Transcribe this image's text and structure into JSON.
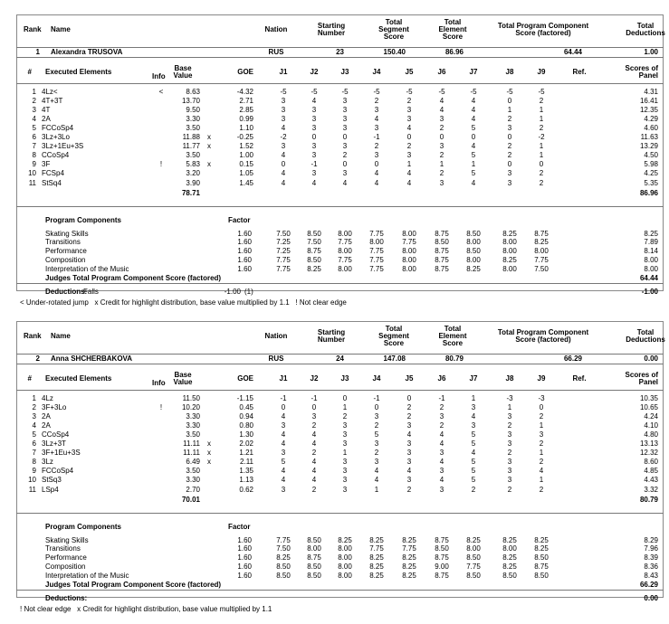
{
  "labels": {
    "rank": "Rank",
    "name": "Name",
    "nation": "Nation",
    "starting_number": [
      "Starting",
      "Number"
    ],
    "segment_score": [
      "Total",
      "Segment",
      "Score"
    ],
    "element_score": [
      "Total",
      "Element",
      "Score"
    ],
    "pcs_score": [
      "Total Program Component",
      "Score (factored)"
    ],
    "deductions": [
      "Total",
      "Deductions"
    ],
    "num": "#",
    "executed": "Executed Elements",
    "info": "Info",
    "base": [
      "Base",
      "Value"
    ],
    "goe": "GOE",
    "judges": [
      "J1",
      "J2",
      "J3",
      "J4",
      "J5",
      "J6",
      "J7",
      "J8",
      "J9"
    ],
    "ref": "Ref.",
    "panel": [
      "Scores of",
      "Panel"
    ],
    "program_components": "Program Components",
    "factor": "Factor",
    "judges_total": "Judges Total Program Component Score (factored)",
    "deductions_row": "Deductions:"
  },
  "skaters": [
    {
      "rank": "1",
      "name": "Alexandra TRUSOVA",
      "nation": "RUS",
      "starting_number": "23",
      "segment_score": "150.40",
      "element_score": "86.96",
      "pcs_score": "64.44",
      "deductions": "1.00",
      "elements": [
        {
          "num": "1",
          "name": "4Lz<",
          "info": "<",
          "base": "8.63",
          "x": "",
          "goe": "-4.32",
          "judges": [
            "-5",
            "-5",
            "-5",
            "-5",
            "-5",
            "-5",
            "-5",
            "-5",
            "-5"
          ],
          "score": "4.31"
        },
        {
          "num": "2",
          "name": "4T+3T",
          "info": "",
          "base": "13.70",
          "x": "",
          "goe": "2.71",
          "judges": [
            "3",
            "4",
            "3",
            "2",
            "2",
            "4",
            "4",
            "0",
            "2"
          ],
          "score": "16.41"
        },
        {
          "num": "3",
          "name": "4T",
          "info": "",
          "base": "9.50",
          "x": "",
          "goe": "2.85",
          "judges": [
            "3",
            "3",
            "3",
            "3",
            "3",
            "4",
            "4",
            "1",
            "1"
          ],
          "score": "12.35"
        },
        {
          "num": "4",
          "name": "2A",
          "info": "",
          "base": "3.30",
          "x": "",
          "goe": "0.99",
          "judges": [
            "3",
            "3",
            "3",
            "4",
            "3",
            "3",
            "4",
            "2",
            "1"
          ],
          "score": "4.29"
        },
        {
          "num": "5",
          "name": "FCCoSp4",
          "info": "",
          "base": "3.50",
          "x": "",
          "goe": "1.10",
          "judges": [
            "4",
            "3",
            "3",
            "3",
            "4",
            "2",
            "5",
            "3",
            "2"
          ],
          "score": "4.60"
        },
        {
          "num": "6",
          "name": "3Lz+3Lo",
          "info": "",
          "base": "11.88",
          "x": "x",
          "goe": "-0.25",
          "judges": [
            "-2",
            "0",
            "0",
            "-1",
            "0",
            "0",
            "0",
            "0",
            "-2"
          ],
          "score": "11.63"
        },
        {
          "num": "7",
          "name": "3Lz+1Eu+3S",
          "info": "",
          "base": "11.77",
          "x": "x",
          "goe": "1.52",
          "judges": [
            "3",
            "3",
            "3",
            "2",
            "2",
            "3",
            "4",
            "2",
            "1"
          ],
          "score": "13.29"
        },
        {
          "num": "8",
          "name": "CCoSp4",
          "info": "",
          "base": "3.50",
          "x": "",
          "goe": "1.00",
          "judges": [
            "4",
            "3",
            "2",
            "3",
            "3",
            "2",
            "5",
            "2",
            "1"
          ],
          "score": "4.50"
        },
        {
          "num": "9",
          "name": "3F",
          "info": "!",
          "base": "5.83",
          "x": "x",
          "goe": "0.15",
          "judges": [
            "0",
            "-1",
            "0",
            "0",
            "1",
            "1",
            "1",
            "0",
            "0"
          ],
          "score": "5.98"
        },
        {
          "num": "10",
          "name": "FCSp4",
          "info": "",
          "base": "3.20",
          "x": "",
          "goe": "1.05",
          "judges": [
            "4",
            "3",
            "3",
            "4",
            "4",
            "2",
            "5",
            "3",
            "2"
          ],
          "score": "4.25"
        },
        {
          "num": "11",
          "name": "StSq4",
          "info": "",
          "base": "3.90",
          "x": "",
          "goe": "1.45",
          "judges": [
            "4",
            "4",
            "4",
            "4",
            "4",
            "3",
            "4",
            "3",
            "2"
          ],
          "score": "5.35"
        }
      ],
      "base_total": "78.71",
      "elements_total": "86.96",
      "components": [
        {
          "name": "Skating Skills",
          "factor": "1.60",
          "judges": [
            "7.50",
            "8.50",
            "8.00",
            "7.75",
            "8.00",
            "8.75",
            "8.50",
            "8.25",
            "8.75"
          ],
          "score": "8.25"
        },
        {
          "name": "Transitions",
          "factor": "1.60",
          "judges": [
            "7.25",
            "7.50",
            "7.75",
            "8.00",
            "7.75",
            "8.50",
            "8.00",
            "8.00",
            "8.25"
          ],
          "score": "7.89"
        },
        {
          "name": "Performance",
          "factor": "1.60",
          "judges": [
            "7.25",
            "8.75",
            "8.00",
            "7.75",
            "8.00",
            "8.75",
            "8.50",
            "8.00",
            "8.00"
          ],
          "score": "8.14"
        },
        {
          "name": "Composition",
          "factor": "1.60",
          "judges": [
            "7.75",
            "8.50",
            "7.75",
            "7.75",
            "8.00",
            "8.75",
            "8.00",
            "8.25",
            "7.75"
          ],
          "score": "8.00"
        },
        {
          "name": "Interpretation of the Music",
          "factor": "1.60",
          "judges": [
            "7.75",
            "8.25",
            "8.00",
            "7.75",
            "8.00",
            "8.75",
            "8.25",
            "8.00",
            "7.50"
          ],
          "score": "8.00"
        }
      ],
      "pcs_total": "64.44",
      "deduction_items": [
        {
          "label": "Falls",
          "value": "-1.00",
          "count": "(1)"
        }
      ],
      "deduction_total": "-1.00",
      "footnote": "< Under-rotated jump   x Credit for highlight distribution, base value multiplied by 1.1   ! Not clear edge"
    },
    {
      "rank": "2",
      "name": "Anna SHCHERBAKOVA",
      "nation": "RUS",
      "starting_number": "24",
      "segment_score": "147.08",
      "element_score": "80.79",
      "pcs_score": "66.29",
      "deductions": "0.00",
      "elements": [
        {
          "num": "1",
          "name": "4Lz",
          "info": "",
          "base": "11.50",
          "x": "",
          "goe": "-1.15",
          "judges": [
            "-1",
            "-1",
            "0",
            "-1",
            "0",
            "-1",
            "1",
            "-3",
            "-3"
          ],
          "score": "10.35"
        },
        {
          "num": "2",
          "name": "3F+3Lo",
          "info": "!",
          "base": "10.20",
          "x": "",
          "goe": "0.45",
          "judges": [
            "0",
            "0",
            "1",
            "0",
            "2",
            "2",
            "3",
            "1",
            "0"
          ],
          "score": "10.65"
        },
        {
          "num": "3",
          "name": "2A",
          "info": "",
          "base": "3.30",
          "x": "",
          "goe": "0.94",
          "judges": [
            "4",
            "3",
            "2",
            "3",
            "2",
            "3",
            "4",
            "3",
            "2"
          ],
          "score": "4.24"
        },
        {
          "num": "4",
          "name": "2A",
          "info": "",
          "base": "3.30",
          "x": "",
          "goe": "0.80",
          "judges": [
            "3",
            "2",
            "3",
            "2",
            "3",
            "2",
            "3",
            "2",
            "1"
          ],
          "score": "4.10"
        },
        {
          "num": "5",
          "name": "CCoSp4",
          "info": "",
          "base": "3.50",
          "x": "",
          "goe": "1.30",
          "judges": [
            "4",
            "4",
            "3",
            "5",
            "4",
            "4",
            "5",
            "3",
            "3"
          ],
          "score": "4.80"
        },
        {
          "num": "6",
          "name": "3Lz+3T",
          "info": "",
          "base": "11.11",
          "x": "x",
          "goe": "2.02",
          "judges": [
            "4",
            "4",
            "3",
            "3",
            "3",
            "4",
            "5",
            "3",
            "2"
          ],
          "score": "13.13"
        },
        {
          "num": "7",
          "name": "3F+1Eu+3S",
          "info": "",
          "base": "11.11",
          "x": "x",
          "goe": "1.21",
          "judges": [
            "3",
            "2",
            "1",
            "2",
            "3",
            "3",
            "4",
            "2",
            "1"
          ],
          "score": "12.32"
        },
        {
          "num": "8",
          "name": "3Lz",
          "info": "",
          "base": "6.49",
          "x": "x",
          "goe": "2.11",
          "judges": [
            "5",
            "4",
            "3",
            "3",
            "3",
            "4",
            "5",
            "3",
            "2"
          ],
          "score": "8.60"
        },
        {
          "num": "9",
          "name": "FCCoSp4",
          "info": "",
          "base": "3.50",
          "x": "",
          "goe": "1.35",
          "judges": [
            "4",
            "4",
            "3",
            "4",
            "4",
            "3",
            "5",
            "3",
            "4"
          ],
          "score": "4.85"
        },
        {
          "num": "10",
          "name": "StSq3",
          "info": "",
          "base": "3.30",
          "x": "",
          "goe": "1.13",
          "judges": [
            "4",
            "4",
            "3",
            "4",
            "3",
            "4",
            "5",
            "3",
            "1"
          ],
          "score": "4.43"
        },
        {
          "num": "11",
          "name": "LSp4",
          "info": "",
          "base": "2.70",
          "x": "",
          "goe": "0.62",
          "judges": [
            "3",
            "2",
            "3",
            "1",
            "2",
            "3",
            "2",
            "2",
            "2"
          ],
          "score": "3.32"
        }
      ],
      "base_total": "70.01",
      "elements_total": "80.79",
      "components": [
        {
          "name": "Skating Skills",
          "factor": "1.60",
          "judges": [
            "7.75",
            "8.50",
            "8.25",
            "8.25",
            "8.25",
            "8.75",
            "8.25",
            "8.25",
            "8.25"
          ],
          "score": "8.29"
        },
        {
          "name": "Transitions",
          "factor": "1.60",
          "judges": [
            "7.50",
            "8.00",
            "8.00",
            "7.75",
            "7.75",
            "8.50",
            "8.00",
            "8.00",
            "8.25"
          ],
          "score": "7.96"
        },
        {
          "name": "Performance",
          "factor": "1.60",
          "judges": [
            "8.25",
            "8.75",
            "8.00",
            "8.25",
            "8.25",
            "8.75",
            "8.50",
            "8.25",
            "8.50"
          ],
          "score": "8.39"
        },
        {
          "name": "Composition",
          "factor": "1.60",
          "judges": [
            "8.50",
            "8.50",
            "8.00",
            "8.25",
            "8.25",
            "9.00",
            "7.75",
            "8.25",
            "8.75"
          ],
          "score": "8.36"
        },
        {
          "name": "Interpretation of the Music",
          "factor": "1.60",
          "judges": [
            "8.50",
            "8.50",
            "8.00",
            "8.25",
            "8.25",
            "8.75",
            "8.50",
            "8.50",
            "8.50"
          ],
          "score": "8.43"
        }
      ],
      "pcs_total": "66.29",
      "deduction_items": [],
      "deduction_total": "0.00",
      "footnote": "! Not clear edge   x Credit for highlight distribution, base value multiplied by 1.1"
    }
  ]
}
